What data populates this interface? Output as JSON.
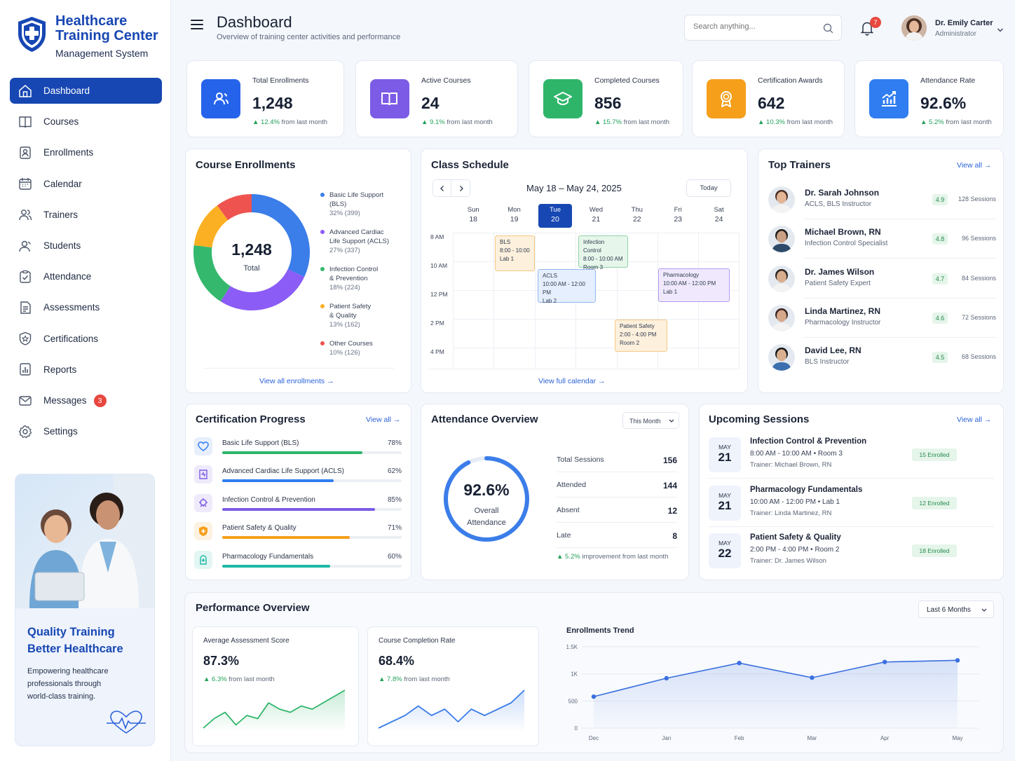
{
  "brand": {
    "title_line1": "Healthcare",
    "title_line2": "Training Center",
    "subtitle": "Management System"
  },
  "sidebar": {
    "items": [
      {
        "label": "Dashboard",
        "icon": "home-icon"
      },
      {
        "label": "Courses",
        "icon": "book-icon"
      },
      {
        "label": "Enrollments",
        "icon": "enrollment-icon"
      },
      {
        "label": "Calendar",
        "icon": "calendar-icon"
      },
      {
        "label": "Trainers",
        "icon": "trainers-icon"
      },
      {
        "label": "Students",
        "icon": "students-icon"
      },
      {
        "label": "Attendance",
        "icon": "attendance-icon"
      },
      {
        "label": "Assessments",
        "icon": "assessment-icon"
      },
      {
        "label": "Certifications",
        "icon": "certificate-icon"
      },
      {
        "label": "Reports",
        "icon": "reports-icon"
      },
      {
        "label": "Messages",
        "icon": "mail-icon",
        "badge": "3"
      },
      {
        "label": "Settings",
        "icon": "gear-icon"
      }
    ],
    "promo": {
      "heading_line1": "Quality Training",
      "heading_line2": "Better Healthcare",
      "text_line1": "Empowering healthcare",
      "text_line2": "professionals through",
      "text_line3": "world-class training."
    }
  },
  "header": {
    "title": "Dashboard",
    "subtitle": "Overview of training center activities and performance",
    "search_placeholder": "Search anything...",
    "notifications": "7",
    "user_name": "Dr. Emily Carter",
    "user_role": "Administrator"
  },
  "kpis": [
    {
      "label": "Total Enrollments",
      "value": "1,248",
      "delta": "12.4%",
      "delta_text": "from last month",
      "color": "#2563eb",
      "icon": "users-icon"
    },
    {
      "label": "Active Courses",
      "value": "24",
      "delta": "9.1%",
      "delta_text": "from last month",
      "color": "#7c5ce6",
      "icon": "open-book-icon"
    },
    {
      "label": "Completed Courses",
      "value": "856",
      "delta": "15.7%",
      "delta_text": "from last month",
      "color": "#2fb56a",
      "icon": "graduation-cap-icon"
    },
    {
      "label": "Certification Awards",
      "value": "642",
      "delta": "10.3%",
      "delta_text": "from last month",
      "color": "#f59f1a",
      "icon": "award-icon"
    },
    {
      "label": "Attendance Rate",
      "value": "92.6%",
      "delta": "5.2%",
      "delta_text": "from last month",
      "color": "#2f7df0",
      "icon": "chart-up-icon"
    }
  ],
  "course_enrollments": {
    "title": "Course Enrollments",
    "total": "1,248",
    "total_label": "Total",
    "link": "View all enrollments",
    "legend": [
      {
        "line1": "Basic Life Support",
        "line2": "(BLS)",
        "pct": "32% (399)"
      },
      {
        "line1": "Advanced Cardiac",
        "line2": "Life Support (ACLS)",
        "pct": "27% (337)"
      },
      {
        "line1": "Infection Control",
        "line2": "& Prevention",
        "pct": "18% (224)"
      },
      {
        "line1": "Patient Safety",
        "line2": "& Quality",
        "pct": "13% (162)"
      },
      {
        "line1": "Other Courses",
        "line2": "",
        "pct": "10% (126)"
      }
    ]
  },
  "schedule": {
    "title": "Class Schedule",
    "range": "May 18 – May 24, 2025",
    "today_label": "Today",
    "link": "View full calendar",
    "days": [
      {
        "name": "Sun",
        "num": "18"
      },
      {
        "name": "Mon",
        "num": "19"
      },
      {
        "name": "Tue",
        "num": "20"
      },
      {
        "name": "Wed",
        "num": "21"
      },
      {
        "name": "Thu",
        "num": "22"
      },
      {
        "name": "Fri",
        "num": "23"
      },
      {
        "name": "Sat",
        "num": "24"
      }
    ],
    "times": [
      "8 AM",
      "10 AM",
      "12 PM",
      "2 PM",
      "4 PM"
    ],
    "events": [
      {
        "title": "BLS",
        "time": "8:00 - 10:00",
        "room": "Lab 1"
      },
      {
        "title": "Infection Control",
        "time": "8:00 - 10:00 AM",
        "room": "Room 3"
      },
      {
        "title": "ACLS",
        "time": "10:00 AM - 12:00 PM",
        "room": "Lab 2"
      },
      {
        "title": "Pharmacology",
        "time": "10:00 AM - 12:00 PM",
        "room": "Lab 1"
      },
      {
        "title": "Patient Safety",
        "time": "2:00 - 4:00 PM",
        "room": "Room 2"
      }
    ]
  },
  "trainers": {
    "title": "Top Trainers",
    "link": "View all",
    "items": [
      {
        "name": "Dr. Sarah Johnson",
        "role": "ACLS, BLS Instructor",
        "rating": "4.9",
        "sessions": "128 Sessions"
      },
      {
        "name": "Michael Brown, RN",
        "role": "Infection Control Specialist",
        "rating": "4.8",
        "sessions": "96 Sessions"
      },
      {
        "name": "Dr. James Wilson",
        "role": "Patient Safety Expert",
        "rating": "4.7",
        "sessions": "84 Sessions"
      },
      {
        "name": "Linda Martinez, RN",
        "role": "Pharmacology Instructor",
        "rating": "4.6",
        "sessions": "72 Sessions"
      },
      {
        "name": "David Lee, RN",
        "role": "BLS Instructor",
        "rating": "4.5",
        "sessions": "68 Sessions"
      }
    ]
  },
  "cert_progress": {
    "title": "Certification Progress",
    "link": "View all",
    "items": [
      {
        "label": "Basic Life Support (BLS)",
        "pct": "78%",
        "value": 0.78,
        "color": "#2fb56a",
        "icon": "heart-icon"
      },
      {
        "label": "Advanced Cardiac Life Support (ACLS)",
        "pct": "62%",
        "value": 0.62,
        "color": "#2f7df0",
        "icon": "cardio-icon"
      },
      {
        "label": "Infection Control & Prevention",
        "pct": "85%",
        "value": 0.85,
        "color": "#7c5ce6",
        "icon": "virus-icon"
      },
      {
        "label": "Patient Safety & Quality",
        "pct": "71%",
        "value": 0.71,
        "color": "#f59f1a",
        "icon": "shield-icon"
      },
      {
        "label": "Pharmacology Fundamentals",
        "pct": "60%",
        "value": 0.6,
        "color": "#1fb8a7",
        "icon": "pill-icon"
      }
    ]
  },
  "attendance": {
    "title": "Attendance Overview",
    "period": "This Month",
    "value": "92.6%",
    "ring": 0.926,
    "label_line1": "Overall",
    "label_line2": "Attendance",
    "rows": [
      {
        "label": "Total Sessions",
        "value": "156"
      },
      {
        "label": "Attended",
        "value": "144"
      },
      {
        "label": "Absent",
        "value": "12"
      },
      {
        "label": "Late",
        "value": "8"
      }
    ],
    "delta": "5.2%",
    "delta_text": "improvement from last month"
  },
  "upcoming": {
    "title": "Upcoming Sessions",
    "link": "View all",
    "items": [
      {
        "month": "MAY",
        "day": "21",
        "title": "Infection Control & Prevention",
        "time": "8:00 AM - 10:00 AM",
        "room": "Room 3",
        "trainer": "Trainer: Michael Brown, RN",
        "enrolled": "15 Enrolled"
      },
      {
        "month": "MAY",
        "day": "21",
        "title": "Pharmacology Fundamentals",
        "time": "10:00 AM - 12:00 PM",
        "room": "Lab 1",
        "trainer": "Trainer: Linda Martinez, RN",
        "enrolled": "12 Enrolled"
      },
      {
        "month": "MAY",
        "day": "22",
        "title": "Patient Safety & Quality",
        "time": "2:00 PM - 4:00 PM",
        "room": "Room 2",
        "trainer": "Trainer: Dr. James Wilson",
        "enrolled": "18 Enrolled"
      }
    ]
  },
  "performance": {
    "title": "Performance Overview",
    "period": "Last 6 Months",
    "score": {
      "label": "Average Assessment Score",
      "value": "87.3%",
      "delta": "6.3%",
      "delta_text": "from last month"
    },
    "completion": {
      "label": "Course Completion Rate",
      "value": "68.4%",
      "delta": "7.8%",
      "delta_text": "from last month"
    },
    "trend_title": "Enrollments Trend"
  },
  "chart_data": [
    {
      "type": "pie",
      "title": "Course Enrollments",
      "categories": [
        "Basic Life Support (BLS)",
        "Advanced Cardiac Life Support (ACLS)",
        "Infection Control & Prevention",
        "Patient Safety & Quality",
        "Other Courses"
      ],
      "values": [
        399,
        337,
        224,
        162,
        126
      ],
      "colors": [
        "#3b7de9",
        "#8b5cf6",
        "#34b86d",
        "#fbb024",
        "#ef5350"
      ]
    },
    {
      "type": "line",
      "title": "Enrollments Trend",
      "categories": [
        "Dec",
        "Jan",
        "Feb",
        "Mar",
        "Apr",
        "May"
      ],
      "values": [
        580,
        920,
        1200,
        930,
        1220,
        1250
      ],
      "yticks": [
        "0",
        "500",
        "1K",
        "1.5K"
      ],
      "ylim": [
        0,
        1500
      ],
      "color": "#3b6fe0"
    },
    {
      "type": "line",
      "title": "Average Assessment Score",
      "values": [
        80,
        83,
        85,
        81,
        84,
        83,
        88,
        86,
        85,
        87,
        86,
        88,
        90,
        92
      ],
      "color": "#2fb56a"
    },
    {
      "type": "line",
      "title": "Course Completion Rate",
      "values": [
        60,
        62,
        64,
        67,
        64,
        66,
        62,
        66,
        64,
        66,
        68,
        72
      ],
      "color": "#3b7de9"
    }
  ]
}
